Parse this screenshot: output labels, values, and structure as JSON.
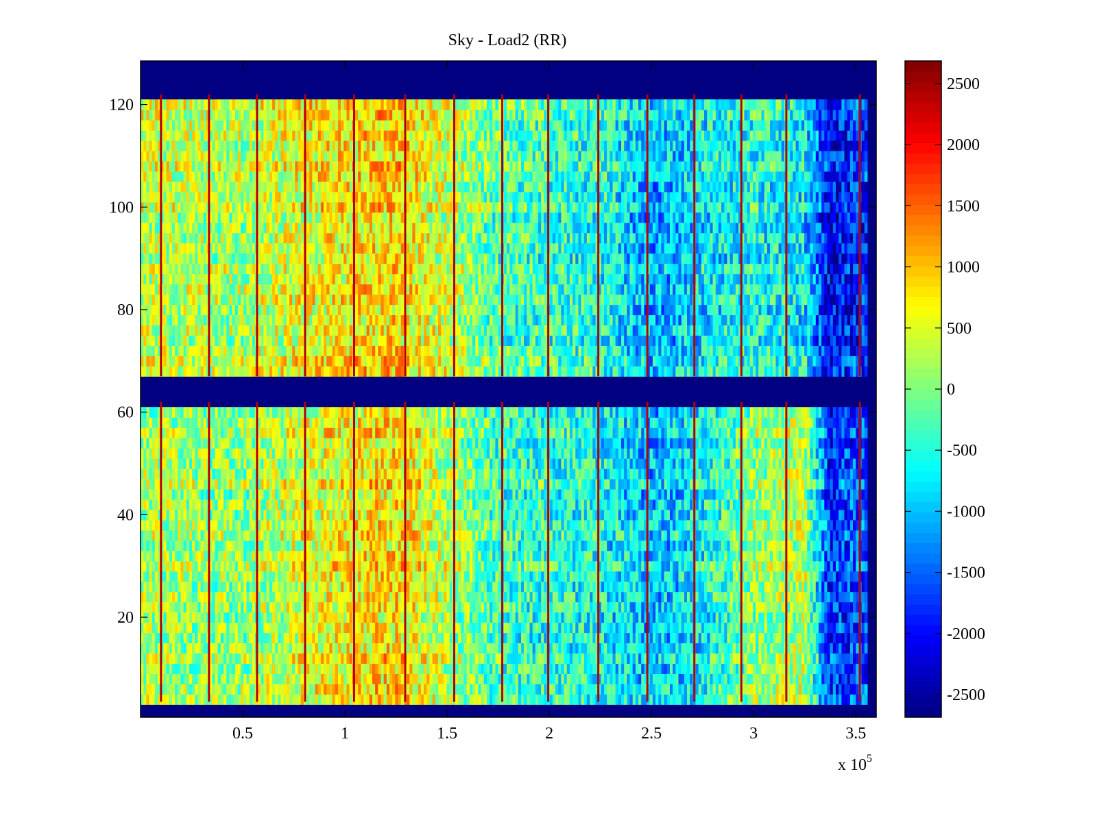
{
  "chart_data": {
    "type": "heatmap",
    "title": "Sky - Load2 (RR)",
    "xlabel": "",
    "ylabel": "",
    "x_multiplier_label": "x 10",
    "x_multiplier_exponent": "5",
    "xlim": [
      0,
      360000
    ],
    "ylim": [
      0.5,
      128.5
    ],
    "x_ticks": [
      50000,
      100000,
      150000,
      200000,
      250000,
      300000,
      350000
    ],
    "x_tick_labels": [
      "0.5",
      "1",
      "1.5",
      "2",
      "2.5",
      "3",
      "3.5"
    ],
    "y_ticks": [
      20,
      40,
      60,
      80,
      100,
      120
    ],
    "y_tick_labels": [
      "20",
      "40",
      "60",
      "80",
      "100",
      "120"
    ],
    "colormap": "jet",
    "clim": [
      -2685,
      2685
    ],
    "colorbar": {
      "ticks": [
        2500,
        2000,
        1500,
        1000,
        500,
        0,
        -500,
        -1000,
        -1500,
        -2000,
        -2500
      ],
      "tick_labels": [
        "2500",
        "2000",
        "1500",
        "1000",
        "500",
        "0",
        "-500",
        "-1000",
        "-1500",
        "-2000",
        "-2500"
      ],
      "placement": "right"
    },
    "grid": false,
    "data_x_extent": [
      0,
      355000
    ],
    "masked_row_bands": [
      [
        0.5,
        3.5
      ],
      [
        62,
        67
      ],
      [
        122,
        128.5
      ]
    ],
    "masked_value": -2685,
    "bright_column_x": [
      10000,
      33500,
      57000,
      80500,
      104500,
      129500,
      153500,
      177000,
      199500,
      224000,
      248000,
      271000,
      294000,
      316000,
      352000
    ],
    "column_profile": {
      "x": [
        0,
        25000,
        50000,
        75000,
        100000,
        125000,
        150000,
        175000,
        200000,
        225000,
        250000,
        275000,
        300000,
        325000,
        337000,
        355000
      ],
      "upper_mean": [
        400,
        300,
        250,
        550,
        750,
        900,
        400,
        -200,
        -350,
        -450,
        -1100,
        -700,
        -500,
        -700,
        -2000,
        -1700
      ],
      "lower_mean": [
        250,
        150,
        100,
        450,
        700,
        850,
        300,
        -300,
        -450,
        -550,
        -1000,
        -600,
        100,
        350,
        -1700,
        -1500
      ]
    }
  }
}
